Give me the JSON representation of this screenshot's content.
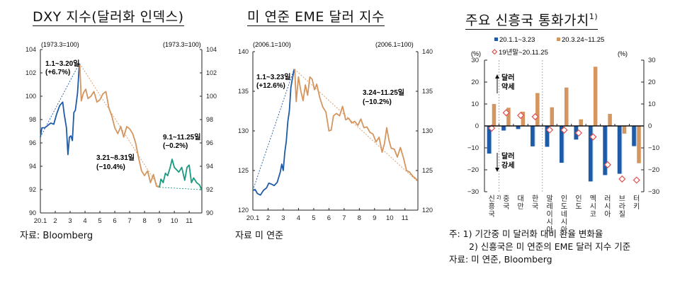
{
  "panels": {
    "dxy": {
      "title": "DXY 지수(달러화 인덱스)",
      "base_left": "(1973.3=100)",
      "base_right": "(1973.3=100)",
      "annotations": {
        "a1_line1": "1.1~3.20일",
        "a1_line2": "(+6.7%)",
        "a2_line1": "3.21~8.31일",
        "a2_line2": "(−10.4%)",
        "a3_line1": "9.1~11.25일",
        "a3_line2": "(−0.2%)"
      },
      "source": "자료: Bloomberg"
    },
    "eme": {
      "title": "미 연준 EME 달러 지수",
      "base_left": "(2006.1=100)",
      "base_right": "(2006.1=100)",
      "annotations": {
        "a1_line1": "1.1~3.23일",
        "a1_line2": "(+12.6%)",
        "a2_line1": "3.24~11.25일",
        "a2_line2": "(−10.2%)"
      },
      "source": "자료 미 연준"
    },
    "em": {
      "title": "주요 신흥국 통화가치",
      "title_sup": "1)",
      "unit_left": "(%)",
      "unit_right": "(%)",
      "legend": {
        "s1": "20.1.1~3.23",
        "s2": "20.3.24~11.25",
        "s3": "19년말~20.11.25"
      },
      "arrow_up": {
        "line1": "달러",
        "line2": "약세"
      },
      "arrow_down": {
        "line1": "달러",
        "line2": "강세"
      },
      "notes": {
        "n1": "주: 1) 기간중 미 달러화 대비 환율 변화율",
        "n2": "2) 신흥국은 미 연준의 EME 달러 지수 기준",
        "n3": "자료: 미 연준, Bloomberg"
      }
    }
  },
  "colors": {
    "blue": "#1f5aa6",
    "blue_light": "#9cc3e6",
    "orange": "#d4955f",
    "green": "#1a9a80",
    "diamond": "#e05050",
    "axis": "#222222"
  },
  "chart_data": [
    {
      "type": "line",
      "title": "DXY 지수(달러화 인덱스)",
      "xlabel": "",
      "ylabel": "(1973.3=100)",
      "x_ticks": [
        "20.1",
        "2",
        "3",
        "4",
        "5",
        "6",
        "7",
        "8",
        "9",
        "10",
        "11"
      ],
      "ylim": [
        90,
        104
      ],
      "y_ticks": [
        90,
        92,
        94,
        96,
        98,
        100,
        102,
        104
      ],
      "grid": false,
      "series": [
        {
          "name": "1.1~3.20",
          "color": "#1f5aa6",
          "x": [
            1.0,
            1.1,
            1.3,
            1.5,
            1.7,
            1.9,
            2.1,
            2.3,
            2.5,
            2.6,
            2.75,
            2.85,
            2.95,
            3.05,
            3.15,
            3.25,
            3.35,
            3.5,
            3.62
          ],
          "values": [
            96.5,
            97.3,
            97.3,
            97.5,
            97.7,
            97.6,
            98.5,
            99.2,
            99.5,
            98.5,
            97.3,
            95.0,
            96.5,
            96.6,
            96.2,
            98.6,
            98.8,
            100.3,
            102.8
          ]
        },
        {
          "name": "3.21~8.31",
          "color": "#d4955f",
          "x": [
            3.65,
            3.75,
            3.9,
            4.05,
            4.2,
            4.4,
            4.6,
            4.8,
            5.0,
            5.2,
            5.4,
            5.6,
            5.8,
            6.0,
            6.2,
            6.4,
            6.6,
            6.8,
            7.0,
            7.2,
            7.4,
            7.6,
            7.8,
            8.0,
            8.2,
            8.4,
            8.6,
            8.8,
            9.0
          ],
          "values": [
            102.7,
            99.6,
            100.3,
            100.6,
            99.8,
            100.0,
            100.4,
            99.5,
            99.7,
            100.2,
            100.4,
            99.0,
            98.3,
            97.3,
            96.8,
            97.4,
            96.5,
            97.4,
            97.2,
            96.8,
            96.0,
            94.7,
            93.6,
            93.2,
            93.6,
            92.6,
            93.3,
            92.3,
            92.2
          ]
        },
        {
          "name": "9.1~11.25",
          "color": "#1a9a80",
          "x": [
            9.0,
            9.1,
            9.25,
            9.4,
            9.55,
            9.7,
            9.85,
            10.0,
            10.15,
            10.3,
            10.5,
            10.7,
            10.85,
            11.0,
            11.15,
            11.3,
            11.5,
            11.7,
            11.83
          ],
          "values": [
            92.2,
            92.9,
            92.6,
            93.4,
            93.2,
            93.8,
            94.6,
            93.9,
            93.7,
            93.5,
            93.9,
            92.8,
            93.9,
            94.1,
            92.6,
            93.0,
            92.6,
            92.4,
            92.0
          ]
        }
      ],
      "trend_lines": [
        {
          "from": [
            "1.1",
            96.5
          ],
          "to": [
            "3.20",
            102.8
          ],
          "label": "1.1~3.20일 (+6.7%)"
        },
        {
          "from": [
            "3.21",
            102.8
          ],
          "to": [
            "8.31",
            92.2
          ],
          "label": "3.21~8.31일 (−10.4%)"
        },
        {
          "from": [
            "9.1",
            92.2
          ],
          "to": [
            "11.25",
            92.0
          ],
          "label": "9.1~11.25일 (−0.2%)"
        }
      ]
    },
    {
      "type": "line",
      "title": "미 연준 EME 달러 지수",
      "xlabel": "",
      "ylabel": "(2006.1=100)",
      "x_ticks": [
        "20.1",
        "2",
        "3",
        "4",
        "5",
        "6",
        "7",
        "8",
        "9",
        "10",
        "11"
      ],
      "ylim": [
        120,
        140
      ],
      "y_ticks": [
        120,
        125,
        130,
        135,
        140
      ],
      "grid": false,
      "series": [
        {
          "name": "1.1~3.23",
          "color": "#1f5aa6",
          "x": [
            1.0,
            1.15,
            1.3,
            1.5,
            1.7,
            1.9,
            2.05,
            2.2,
            2.4,
            2.6,
            2.8,
            2.9,
            3.0,
            3.1,
            3.2,
            3.3,
            3.4,
            3.5,
            3.6,
            3.72
          ],
          "values": [
            122.5,
            122.6,
            122.1,
            121.9,
            122.5,
            122.8,
            123.4,
            123.3,
            123.1,
            123.5,
            124.8,
            125.8,
            125.0,
            127.3,
            128.7,
            131.2,
            132.5,
            135.5,
            136.6,
            137.8
          ]
        },
        {
          "name": "3.24~11.25",
          "color": "#d4955f",
          "x": [
            3.75,
            3.85,
            4.0,
            4.15,
            4.3,
            4.45,
            4.6,
            4.75,
            4.9,
            5.05,
            5.2,
            5.4,
            5.6,
            5.8,
            6.0,
            6.15,
            6.3,
            6.5,
            6.7,
            6.9,
            7.1,
            7.3,
            7.5,
            7.7,
            7.9,
            8.1,
            8.3,
            8.5,
            8.7,
            8.9,
            9.1,
            9.3,
            9.5,
            9.65,
            9.8,
            9.95,
            10.1,
            10.3,
            10.5,
            10.7,
            10.9,
            11.1,
            11.3,
            11.5,
            11.7,
            11.83
          ],
          "values": [
            137.8,
            133.7,
            136.8,
            135.1,
            133.8,
            135.8,
            134.5,
            136.8,
            136.5,
            135.2,
            135.9,
            134.2,
            133.0,
            132.4,
            130.0,
            130.1,
            131.9,
            132.2,
            131.9,
            133.1,
            131.4,
            131.6,
            131.0,
            131.2,
            130.7,
            131.5,
            130.4,
            130.5,
            129.8,
            129.6,
            128.6,
            129.2,
            127.3,
            128.4,
            130.4,
            128.8,
            127.8,
            127.7,
            126.7,
            127.9,
            126.6,
            125.0,
            124.8,
            124.3,
            124.0,
            123.7
          ]
        }
      ],
      "trend_lines": [
        {
          "from": [
            "1.1",
            122.5
          ],
          "to": [
            "3.23",
            137.8
          ],
          "label": "1.1~3.23일 (+12.6%)"
        },
        {
          "from": [
            "3.24",
            137.8
          ],
          "to": [
            "11.25",
            123.7
          ],
          "label": "3.24~11.25일 (−10.2%)"
        }
      ]
    },
    {
      "type": "bar",
      "title": "주요 신흥국 통화가치1)",
      "xlabel": "",
      "ylabel": "(%)",
      "ylim": [
        -30,
        30
      ],
      "y_ticks": [
        -30,
        -20,
        -10,
        0,
        10,
        20,
        30
      ],
      "legend_position": "top",
      "categories": [
        "신흥국2)",
        "중국",
        "대만",
        "한국",
        "말레이시아",
        "인도네시아",
        "인도",
        "멕시코",
        "러시아",
        "브라질",
        "터키"
      ],
      "series": [
        {
          "name": "20.1.1~3.23",
          "color": "#1f5aa6",
          "values": [
            -12.6,
            -2.1,
            -1.4,
            -9.3,
            -9.5,
            -16.8,
            -6.2,
            -25.3,
            -22.4,
            -21.8,
            -9.2
          ]
        },
        {
          "name": "20.3.24~11.25",
          "color": "#d4955f",
          "values": [
            10.0,
            8.3,
            6.5,
            15.0,
            8.5,
            17.5,
            3.0,
            27.0,
            5.5,
            -3.5,
            -17.0
          ]
        },
        {
          "name": "19년말~20.11.25",
          "type": "scatter",
          "marker": "diamond",
          "color": "#e05050",
          "values": [
            -1.0,
            6.0,
            4.8,
            4.2,
            -1.8,
            -1.9,
            -3.2,
            -5.0,
            -17.7,
            -24.2,
            -24.7
          ]
        }
      ],
      "annotations": [
        "달러 약세 (↑)",
        "달러 강세 (↓)"
      ]
    }
  ]
}
